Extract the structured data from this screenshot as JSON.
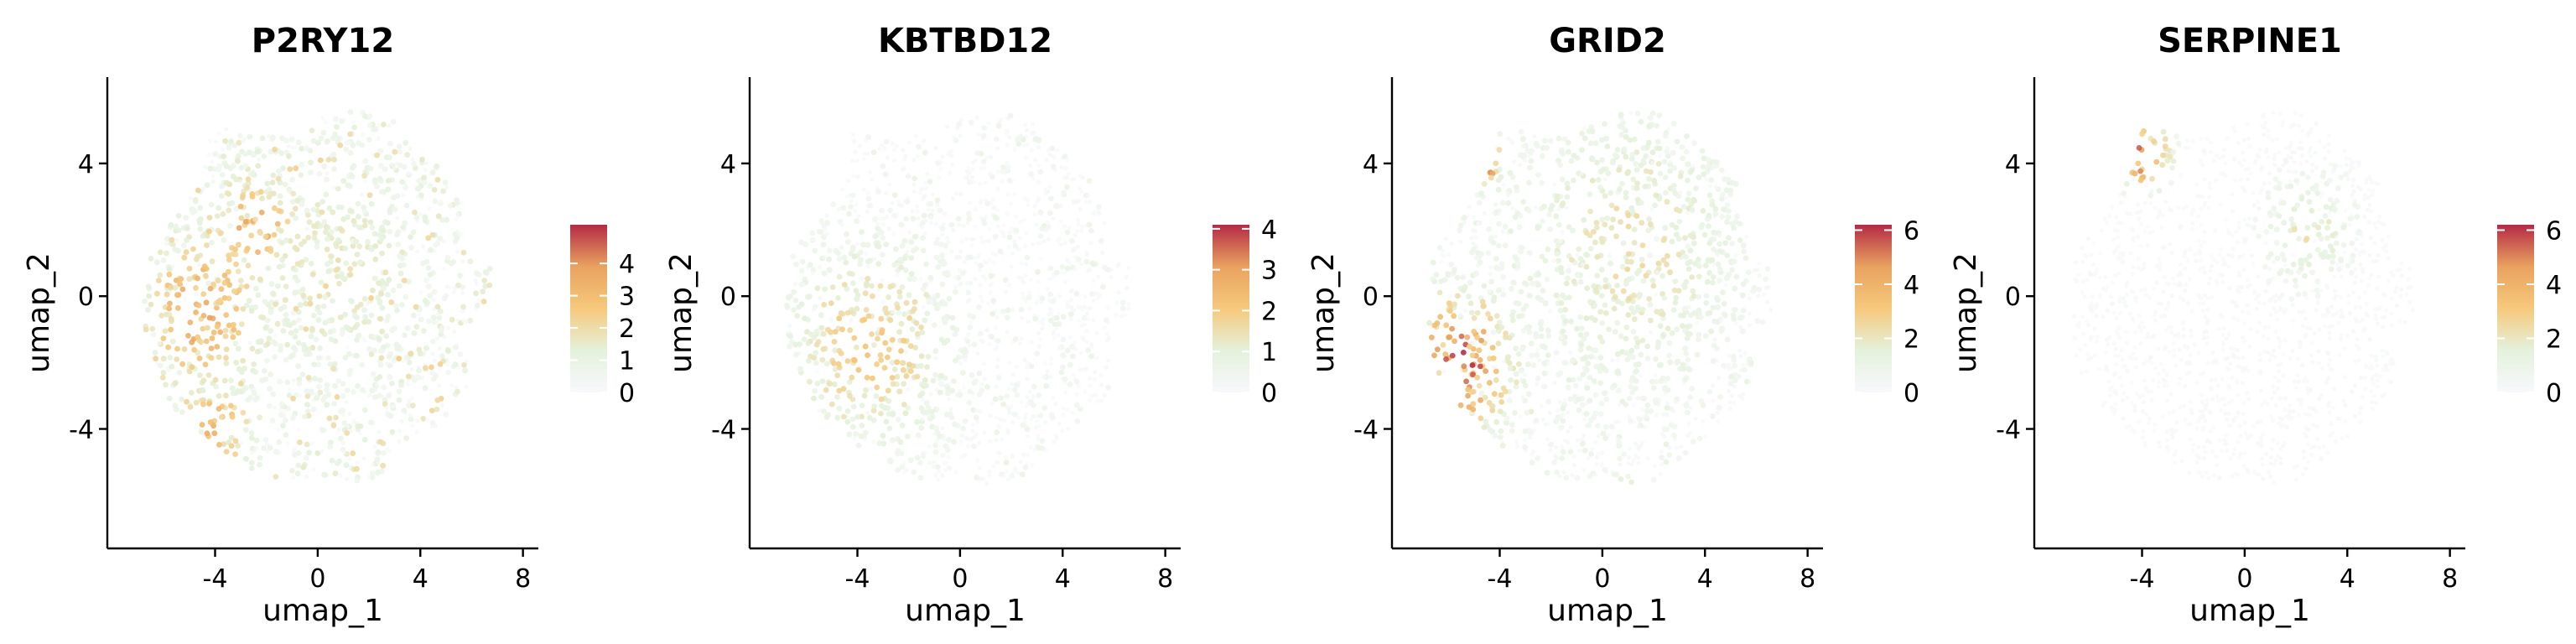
{
  "colors": {
    "scale": [
      "#f8f8fc",
      "#e4f2dc",
      "#f6c97c",
      "#e9a25f",
      "#b52a45"
    ],
    "axis": "#000000"
  },
  "chart_data": [
    {
      "type": "scatter",
      "title": "P2RY12",
      "xlabel": "umap_1",
      "ylabel": "umap_2",
      "xlim": [
        -8.2,
        8.6
      ],
      "ylim": [
        -7.6,
        6.6
      ],
      "xticks": [
        -4,
        0,
        4,
        8
      ],
      "xtick_labels": [
        "-4",
        "0",
        "4",
        "8"
      ],
      "yticks": [
        -4,
        0,
        4
      ],
      "ytick_labels": [
        "-4",
        "0",
        "4"
      ],
      "colorbar": {
        "min": 0,
        "max": 5.2,
        "ticks": [
          0,
          1,
          2,
          3,
          4
        ],
        "tick_labels": [
          "0",
          "1",
          "2",
          "3",
          "4"
        ]
      },
      "hotspots": [
        {
          "x": -4.5,
          "y": -0.5,
          "r": 2.8,
          "level": 3.4
        },
        {
          "x": -2.5,
          "y": 2.0,
          "r": 2.2,
          "level": 3.2
        },
        {
          "x": -4.0,
          "y": -4.0,
          "r": 1.8,
          "level": 3.0
        },
        {
          "x": 0.5,
          "y": 1.0,
          "r": 4.5,
          "level": 1.6
        }
      ],
      "base_level": 1.2
    },
    {
      "type": "scatter",
      "title": "KBTBD12",
      "xlabel": "umap_1",
      "ylabel": "umap_2",
      "xlim": [
        -8.2,
        8.6
      ],
      "ylim": [
        -7.6,
        6.6
      ],
      "xticks": [
        -4,
        0,
        4,
        8
      ],
      "xtick_labels": [
        "-4",
        "0",
        "4",
        "8"
      ],
      "yticks": [
        -4,
        0,
        4
      ],
      "ytick_labels": [
        "-4",
        "0",
        "4"
      ],
      "colorbar": {
        "min": 0,
        "max": 4.1,
        "ticks": [
          0,
          1,
          2,
          3,
          4
        ],
        "tick_labels": [
          "0",
          "1",
          "2",
          "3",
          "4"
        ]
      },
      "hotspots": [
        {
          "x": -3.5,
          "y": -1.5,
          "r": 3.5,
          "level": 2.0
        }
      ],
      "base_level": 0.4
    },
    {
      "type": "scatter",
      "title": "GRID2",
      "xlabel": "umap_1",
      "ylabel": "umap_2",
      "xlim": [
        -8.2,
        8.6
      ],
      "ylim": [
        -7.6,
        6.6
      ],
      "xticks": [
        -4,
        0,
        4,
        8
      ],
      "xtick_labels": [
        "-4",
        "0",
        "4",
        "8"
      ],
      "yticks": [
        -4,
        0,
        4
      ],
      "ytick_labels": [
        "-4",
        "0",
        "4"
      ],
      "colorbar": {
        "min": 0,
        "max": 6.2,
        "ticks": [
          0,
          2,
          4,
          6
        ],
        "tick_labels": [
          "0",
          "2",
          "4",
          "6"
        ]
      },
      "hotspots": [
        {
          "x": -5.5,
          "y": -2.0,
          "r": 2.3,
          "level": 5.2
        },
        {
          "x": -4.5,
          "y": 4.0,
          "r": 0.9,
          "level": 4.5
        },
        {
          "x": 1.0,
          "y": 1.5,
          "r": 5.0,
          "level": 2.2
        }
      ],
      "base_level": 0.8
    },
    {
      "type": "scatter",
      "title": "SERPINE1",
      "xlabel": "umap_1",
      "ylabel": "umap_2",
      "xlim": [
        -8.2,
        8.6
      ],
      "ylim": [
        -7.6,
        6.6
      ],
      "xticks": [
        -4,
        0,
        4,
        8
      ],
      "xtick_labels": [
        "-4",
        "0",
        "4",
        "8"
      ],
      "yticks": [
        -4,
        0,
        4
      ],
      "ytick_labels": [
        "-4",
        "0",
        "4"
      ],
      "colorbar": {
        "min": 0,
        "max": 6.2,
        "ticks": [
          0,
          2,
          4,
          6
        ],
        "tick_labels": [
          "0",
          "2",
          "4",
          "6"
        ]
      },
      "hotspots": [
        {
          "x": -3.9,
          "y": 4.2,
          "r": 1.1,
          "level": 5.0
        },
        {
          "x": 2.5,
          "y": 2.0,
          "r": 2.0,
          "level": 2.0
        }
      ],
      "base_level": 0.2
    }
  ]
}
